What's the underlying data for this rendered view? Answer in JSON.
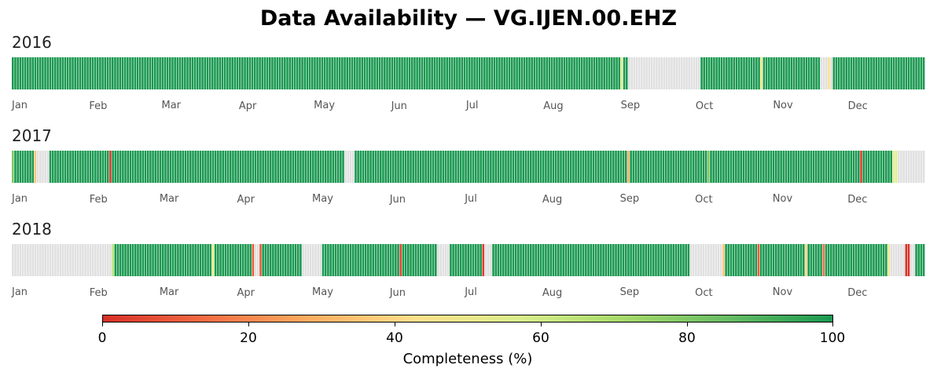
{
  "chart_data": {
    "type": "heatmap",
    "title": "Data Availability — VG.IJEN.00.EHZ",
    "colorbar": {
      "label": "Completeness (%)",
      "ticks": [
        "0",
        "20",
        "40",
        "60",
        "80",
        "100"
      ],
      "range": [
        0,
        100
      ],
      "colormap": [
        "#d73027",
        "#f46d43",
        "#fdae61",
        "#fee08b",
        "#d9ef8b",
        "#a6d96a",
        "#66bd63",
        "#1a9850"
      ],
      "no_data_color": "#e0e0e0"
    },
    "months": [
      "Jan",
      "Feb",
      "Mar",
      "Apr",
      "May",
      "Jun",
      "Jul",
      "Aug",
      "Sep",
      "Oct",
      "Nov",
      "Dec"
    ],
    "years": [
      {
        "year": "2016",
        "days_in_year": 366,
        "note_segments": "completeness per day range [start_day, end_day, percent]; null = no data",
        "segments": [
          [
            1,
            244,
            100
          ],
          [
            245,
            245,
            55
          ],
          [
            246,
            247,
            100
          ],
          [
            248,
            276,
            null
          ],
          [
            277,
            300,
            100
          ],
          [
            301,
            301,
            50
          ],
          [
            302,
            324,
            100
          ],
          [
            325,
            327,
            null
          ],
          [
            328,
            328,
            45
          ],
          [
            329,
            329,
            null
          ],
          [
            330,
            366,
            100
          ]
        ]
      },
      {
        "year": "2017",
        "days_in_year": 365,
        "segments": [
          [
            1,
            1,
            80
          ],
          [
            2,
            9,
            100
          ],
          [
            10,
            10,
            35
          ],
          [
            11,
            15,
            null
          ],
          [
            16,
            39,
            100
          ],
          [
            40,
            40,
            2
          ],
          [
            41,
            133,
            100
          ],
          [
            134,
            137,
            null
          ],
          [
            138,
            246,
            100
          ],
          [
            247,
            247,
            30
          ],
          [
            248,
            278,
            100
          ],
          [
            279,
            279,
            80
          ],
          [
            280,
            339,
            100
          ],
          [
            340,
            340,
            3
          ],
          [
            341,
            352,
            100
          ],
          [
            353,
            354,
            55
          ],
          [
            355,
            365,
            null
          ]
        ]
      },
      {
        "year": "2018",
        "days_in_year": 365,
        "segments": [
          [
            1,
            40,
            null
          ],
          [
            41,
            41,
            65
          ],
          [
            42,
            80,
            100
          ],
          [
            81,
            81,
            50
          ],
          [
            82,
            96,
            100
          ],
          [
            97,
            97,
            10
          ],
          [
            98,
            99,
            null
          ],
          [
            100,
            100,
            10
          ],
          [
            101,
            116,
            100
          ],
          [
            117,
            124,
            null
          ],
          [
            125,
            155,
            100
          ],
          [
            156,
            156,
            5
          ],
          [
            157,
            170,
            100
          ],
          [
            171,
            175,
            null
          ],
          [
            176,
            188,
            100
          ],
          [
            189,
            189,
            3
          ],
          [
            190,
            192,
            null
          ],
          [
            193,
            271,
            100
          ],
          [
            272,
            284,
            null
          ],
          [
            285,
            285,
            35
          ],
          [
            286,
            298,
            100
          ],
          [
            299,
            299,
            10
          ],
          [
            300,
            317,
            100
          ],
          [
            318,
            318,
            40
          ],
          [
            319,
            324,
            100
          ],
          [
            325,
            325,
            15
          ],
          [
            326,
            350,
            100
          ],
          [
            351,
            351,
            50
          ],
          [
            352,
            357,
            null
          ],
          [
            358,
            359,
            0
          ],
          [
            360,
            361,
            null
          ],
          [
            362,
            365,
            100
          ]
        ]
      }
    ]
  }
}
